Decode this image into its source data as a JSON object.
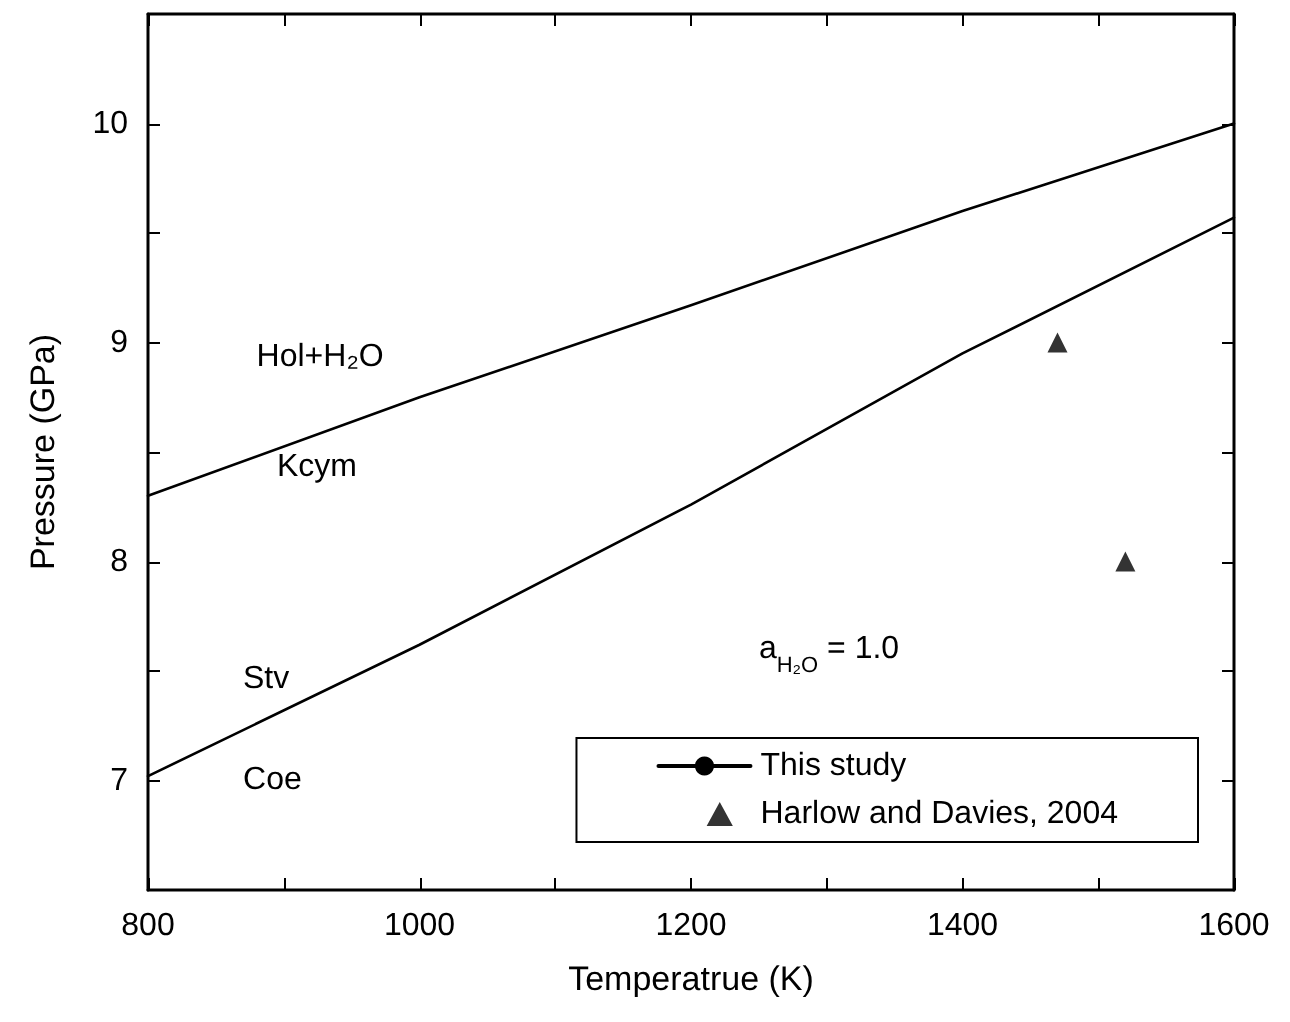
{
  "chart_data": {
    "type": "line",
    "xlabel": "Temperatrue (K)",
    "ylabel": "Pressure (GPa)",
    "xlim": [
      800,
      1600
    ],
    "ylim": [
      6.5,
      10.5
    ],
    "xticks": [
      800,
      {
        "value": 900,
        "label": null
      },
      1000,
      {
        "value": 1100,
        "label": null
      },
      1200,
      {
        "value": 1300,
        "label": null
      },
      1400,
      {
        "value": 1500,
        "label": null
      },
      1600
    ],
    "yticks": [
      7,
      {
        "value": 7.5,
        "label": null
      },
      8,
      {
        "value": 8.5,
        "label": null
      },
      9,
      {
        "value": 9.5,
        "label": null
      },
      10
    ],
    "series": [
      {
        "name": "This study",
        "color": "#000000",
        "marker": "none",
        "x": [
          800,
          1000,
          1200,
          1400,
          1600
        ],
        "values": [
          8.3,
          8.75,
          9.17,
          9.6,
          10.0
        ]
      },
      {
        "color": "#000000",
        "marker": "none",
        "x": [
          800,
          1000,
          1200,
          1400,
          1600
        ],
        "values": [
          7.02,
          7.62,
          8.26,
          8.95,
          9.57
        ]
      },
      {
        "name": "Harlow and Davies, 2004",
        "type": "scatter",
        "color": "#000000",
        "marker": "triangle",
        "x": [
          1470,
          1520
        ],
        "values": [
          9.0,
          8.0
        ]
      }
    ],
    "annotations": [
      "Hol+H₂O",
      "Kcym",
      "Stv",
      "Coe",
      "a$_{H₂O}$ = 1.0"
    ],
    "legend": "bottom right",
    "grid": false,
    "line_style": "solid"
  }
}
